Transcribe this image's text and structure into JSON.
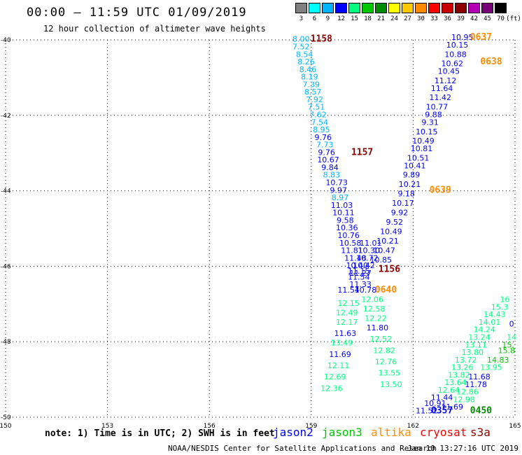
{
  "header": {
    "title": "00:00 – 11:59 UTC 01/09/2019",
    "subtitle": "12 hour collection of altimeter wave heights"
  },
  "color_scale": {
    "unit": "(ft)",
    "bins": [
      {
        "label": "3",
        "color": "#808080"
      },
      {
        "label": "6",
        "color": "#00ffff"
      },
      {
        "label": "9",
        "color": "#00b4ff"
      },
      {
        "label": "12",
        "color": "#0000ff"
      },
      {
        "label": "15",
        "color": "#00ff7f"
      },
      {
        "label": "18",
        "color": "#00c800"
      },
      {
        "label": "21",
        "color": "#008c00"
      },
      {
        "label": "24",
        "color": "#ffff00"
      },
      {
        "label": "27",
        "color": "#ffc800"
      },
      {
        "label": "30",
        "color": "#ff8c00"
      },
      {
        "label": "33",
        "color": "#ff0000"
      },
      {
        "label": "36",
        "color": "#c80000"
      },
      {
        "label": "39",
        "color": "#8c0000"
      },
      {
        "label": "42",
        "color": "#b400b4"
      },
      {
        "label": "45",
        "color": "#780078"
      },
      {
        "label": "70",
        "color": "#000000"
      }
    ]
  },
  "map": {
    "lon_range": [
      150,
      165
    ],
    "lat_range": [
      -50,
      -40
    ],
    "lon_ticks": [
      "150",
      "153",
      "156",
      "159",
      "162",
      "165"
    ],
    "lat_ticks": [
      "-40",
      "-42",
      "-44",
      "-46",
      "-48",
      "-50"
    ],
    "grid": "dotted"
  },
  "tracks": [
    {
      "id": "track-1158",
      "time_label": "1158",
      "time_lon": 159.3,
      "time_lat": -40.05,
      "time_color": "#8c0000",
      "points": [
        {
          "lon": 158.7,
          "lat": -40.05,
          "v": "8.00",
          "c": "#00b4ff"
        },
        {
          "lon": 158.7,
          "lat": -40.25,
          "v": "7.52",
          "c": "#00b4ff"
        },
        {
          "lon": 158.8,
          "lat": -40.45,
          "v": "8.54",
          "c": "#00b4ff"
        },
        {
          "lon": 158.85,
          "lat": -40.65,
          "v": "8.26",
          "c": "#00b4ff"
        },
        {
          "lon": 158.9,
          "lat": -40.85,
          "v": "8.46",
          "c": "#00b4ff"
        },
        {
          "lon": 158.95,
          "lat": -41.05,
          "v": "8.19",
          "c": "#00b4ff"
        },
        {
          "lon": 159.0,
          "lat": -41.25,
          "v": "7.39",
          "c": "#00b4ff"
        },
        {
          "lon": 159.05,
          "lat": -41.45,
          "v": "8.57",
          "c": "#00b4ff"
        },
        {
          "lon": 159.1,
          "lat": -41.65,
          "v": "7.92",
          "c": "#00b4ff"
        },
        {
          "lon": 159.15,
          "lat": -41.85,
          "v": "7.51",
          "c": "#00b4ff"
        },
        {
          "lon": 159.2,
          "lat": -42.05,
          "v": "7.62",
          "c": "#00b4ff"
        },
        {
          "lon": 159.25,
          "lat": -42.25,
          "v": "7.54",
          "c": "#00b4ff"
        },
        {
          "lon": 159.3,
          "lat": -42.45,
          "v": "8.95",
          "c": "#00b4ff"
        },
        {
          "lon": 159.35,
          "lat": -42.65,
          "v": "9.76",
          "c": "#0000ff"
        },
        {
          "lon": 159.4,
          "lat": -42.85,
          "v": "7.73",
          "c": "#00b4ff"
        },
        {
          "lon": 159.45,
          "lat": -43.05,
          "v": "9.76",
          "c": "#0000ff"
        },
        {
          "lon": 159.5,
          "lat": -43.25,
          "v": "10.67",
          "c": "#0000ff"
        },
        {
          "lon": 159.55,
          "lat": -43.45,
          "v": "9.84",
          "c": "#0000ff"
        },
        {
          "lon": 159.6,
          "lat": -43.65,
          "v": "8.83",
          "c": "#00b4ff"
        }
      ]
    },
    {
      "id": "track-1157",
      "time_label": "1157",
      "time_lon": 160.5,
      "time_lat": -43.05,
      "time_color": "#8c0000",
      "points": [
        {
          "lon": 159.75,
          "lat": -43.85,
          "v": "10.73",
          "c": "#0000ff"
        },
        {
          "lon": 159.8,
          "lat": -44.05,
          "v": "9.97",
          "c": "#0000ff"
        },
        {
          "lon": 159.85,
          "lat": -44.25,
          "v": "8.97",
          "c": "#00b4ff"
        },
        {
          "lon": 159.9,
          "lat": -44.45,
          "v": "11.03",
          "c": "#0000ff"
        },
        {
          "lon": 159.95,
          "lat": -44.65,
          "v": "10.11",
          "c": "#0000ff"
        },
        {
          "lon": 160.0,
          "lat": -44.85,
          "v": "9.58",
          "c": "#0000ff"
        },
        {
          "lon": 160.05,
          "lat": -45.05,
          "v": "10.36",
          "c": "#0000ff"
        },
        {
          "lon": 160.1,
          "lat": -45.25,
          "v": "10.76",
          "c": "#0000ff"
        },
        {
          "lon": 160.15,
          "lat": -45.45,
          "v": "10.58",
          "c": "#0000ff"
        },
        {
          "lon": 160.2,
          "lat": -45.65,
          "v": "11.81",
          "c": "#0000ff"
        },
        {
          "lon": 160.3,
          "lat": -45.85,
          "v": "11.48",
          "c": "#0000ff"
        },
        {
          "lon": 160.35,
          "lat": -46.05,
          "v": "10.40",
          "c": "#0000ff"
        },
        {
          "lon": 160.4,
          "lat": -46.2,
          "v": "11.15",
          "c": "#0000ff"
        },
        {
          "lon": 160.4,
          "lat": -46.35,
          "v": "11.54",
          "c": "#0000ff"
        },
        {
          "lon": 160.45,
          "lat": -46.55,
          "v": "11.33",
          "c": "#0000ff"
        },
        {
          "lon": 160.1,
          "lat": -46.7,
          "v": "11.54",
          "c": "#0000ff"
        }
      ]
    },
    {
      "id": "track-1156",
      "time_label": "1156",
      "time_lon": 161.3,
      "time_lat": -46.15,
      "time_color": "#8c0000",
      "points": [
        {
          "lon": 160.75,
          "lat": -45.45,
          "v": "11.01",
          "c": "#0000ff"
        },
        {
          "lon": 160.7,
          "lat": -45.65,
          "v": "10.30",
          "c": "#0000ff"
        },
        {
          "lon": 160.65,
          "lat": -45.85,
          "v": "10.72",
          "c": "#0000ff"
        },
        {
          "lon": 160.55,
          "lat": -46.05,
          "v": "10.42",
          "c": "#0000ff"
        },
        {
          "lon": 160.45,
          "lat": -46.25,
          "v": "11.27",
          "c": "#0000ff"
        },
        {
          "lon": 160.6,
          "lat": -46.7,
          "v": "10.78",
          "c": "#0000ff"
        }
      ]
    },
    {
      "id": "track-0640",
      "time_label": "0640",
      "time_lon": 161.2,
      "time_lat": -46.7,
      "time_color": "#ff8c00",
      "points": [
        {
          "lon": 160.1,
          "lat": -47.05,
          "v": "12.15",
          "c": "#00ff7f"
        },
        {
          "lon": 160.05,
          "lat": -47.3,
          "v": "12.49",
          "c": "#00ff7f"
        },
        {
          "lon": 160.05,
          "lat": -47.55,
          "v": "12.17",
          "c": "#00ff7f"
        },
        {
          "lon": 160.0,
          "lat": -47.85,
          "v": "11.63",
          "c": "#0000ff"
        },
        {
          "lon": 159.9,
          "lat": -48.1,
          "v": "13.49",
          "c": "#00ff7f"
        },
        {
          "lon": 159.85,
          "lat": -48.4,
          "v": "11.69",
          "c": "#0000ff"
        },
        {
          "lon": 159.8,
          "lat": -48.7,
          "v": "12.11",
          "c": "#00ff7f"
        },
        {
          "lon": 159.7,
          "lat": -49.0,
          "v": "12.69",
          "c": "#00ff7f"
        },
        {
          "lon": 159.6,
          "lat": -49.3,
          "v": "12.36",
          "c": "#00ff7f"
        },
        {
          "lon": 160.8,
          "lat": -46.95,
          "v": "12.06",
          "c": "#00ff7f"
        },
        {
          "lon": 160.85,
          "lat": -47.2,
          "v": "12.58",
          "c": "#00ff7f"
        },
        {
          "lon": 160.9,
          "lat": -47.45,
          "v": "12.22",
          "c": "#00ff7f"
        },
        {
          "lon": 160.95,
          "lat": -47.7,
          "v": "11.80",
          "c": "#0000ff"
        },
        {
          "lon": 161.05,
          "lat": -48.0,
          "v": "12.52",
          "c": "#00ff7f"
        },
        {
          "lon": 161.15,
          "lat": -48.3,
          "v": "12.82",
          "c": "#00ff7f"
        },
        {
          "lon": 161.2,
          "lat": -48.6,
          "v": "12.76",
          "c": "#00ff7f"
        },
        {
          "lon": 161.3,
          "lat": -48.9,
          "v": "13.55",
          "c": "#00ff7f"
        },
        {
          "lon": 161.35,
          "lat": -49.2,
          "v": "13.50",
          "c": "#00ff7f"
        }
      ]
    },
    {
      "id": "track-0637",
      "time_label": "0637",
      "time_lon": 164.0,
      "time_lat": -40.0,
      "time_color": "#ff8c00",
      "points": [
        {
          "lon": 163.45,
          "lat": -40.0,
          "v": "10.95",
          "c": "#0000ff"
        },
        {
          "lon": 163.3,
          "lat": -40.2,
          "v": "10.15",
          "c": "#0000ff"
        },
        {
          "lon": 163.25,
          "lat": -40.45,
          "v": "10.88",
          "c": "#0000ff"
        },
        {
          "lon": 163.15,
          "lat": -40.7,
          "v": "10.62",
          "c": "#0000ff"
        },
        {
          "lon": 163.05,
          "lat": -40.9,
          "v": "10.45",
          "c": "#0000ff"
        },
        {
          "lon": 162.95,
          "lat": -41.15,
          "v": "11.12",
          "c": "#0000ff"
        },
        {
          "lon": 162.85,
          "lat": -41.35,
          "v": "11.64",
          "c": "#0000ff"
        },
        {
          "lon": 162.8,
          "lat": -41.6,
          "v": "11.42",
          "c": "#0000ff"
        },
        {
          "lon": 162.7,
          "lat": -41.85,
          "v": "10.77",
          "c": "#0000ff"
        },
        {
          "lon": 162.6,
          "lat": -42.05,
          "v": "9.88",
          "c": "#0000ff"
        },
        {
          "lon": 162.5,
          "lat": -42.25,
          "v": "9.31",
          "c": "#0000ff"
        },
        {
          "lon": 162.4,
          "lat": -42.5,
          "v": "10.15",
          "c": "#0000ff"
        },
        {
          "lon": 162.3,
          "lat": -42.75,
          "v": "10.49",
          "c": "#0000ff"
        },
        {
          "lon": 162.25,
          "lat": -42.95,
          "v": "10.81",
          "c": "#0000ff"
        },
        {
          "lon": 162.15,
          "lat": -43.2,
          "v": "10.51",
          "c": "#0000ff"
        },
        {
          "lon": 162.05,
          "lat": -43.4,
          "v": "10.41",
          "c": "#0000ff"
        },
        {
          "lon": 161.95,
          "lat": -43.65,
          "v": "9.89",
          "c": "#0000ff"
        }
      ]
    },
    {
      "id": "track-0638",
      "time_label": "0638",
      "time_lon": 164.3,
      "time_lat": -40.65,
      "time_color": "#ff8c00",
      "points": []
    },
    {
      "id": "track-0639",
      "time_label": "0639",
      "time_lon": 162.8,
      "time_lat": -44.05,
      "time_color": "#ff8c00",
      "points": [
        {
          "lon": 161.9,
          "lat": -43.9,
          "v": "10.21",
          "c": "#0000ff"
        },
        {
          "lon": 161.8,
          "lat": -44.15,
          "v": "9.18",
          "c": "#0000ff"
        },
        {
          "lon": 161.7,
          "lat": -44.4,
          "v": "10.17",
          "c": "#0000ff"
        },
        {
          "lon": 161.6,
          "lat": -44.65,
          "v": "9.92",
          "c": "#0000ff"
        },
        {
          "lon": 161.45,
          "lat": -44.9,
          "v": "9.52",
          "c": "#0000ff"
        },
        {
          "lon": 161.35,
          "lat": -45.15,
          "v": "10.49",
          "c": "#0000ff"
        },
        {
          "lon": 161.25,
          "lat": -45.4,
          "v": "10.21",
          "c": "#0000ff"
        },
        {
          "lon": 161.15,
          "lat": -45.65,
          "v": "10.47",
          "c": "#0000ff"
        },
        {
          "lon": 161.05,
          "lat": -45.9,
          "v": "10.85",
          "c": "#0000ff"
        }
      ]
    },
    {
      "id": "track-0357",
      "time_label": "0357",
      "time_lon": 162.85,
      "time_lat": -49.9,
      "time_color": "#0000ff",
      "points": [
        {
          "lon": 162.4,
          "lat": -49.9,
          "v": "11.52",
          "c": "#0000ff"
        },
        {
          "lon": 162.65,
          "lat": -49.7,
          "v": "10.91",
          "c": "#0000ff"
        },
        {
          "lon": 162.85,
          "lat": -49.55,
          "v": "11.44",
          "c": "#0000ff"
        },
        {
          "lon": 163.05,
          "lat": -49.35,
          "v": "12.64",
          "c": "#00ff7f"
        },
        {
          "lon": 163.25,
          "lat": -49.15,
          "v": "13.64",
          "c": "#00ff7f"
        },
        {
          "lon": 163.35,
          "lat": -48.95,
          "v": "13.82",
          "c": "#00ff7f"
        },
        {
          "lon": 163.45,
          "lat": -48.75,
          "v": "13.26",
          "c": "#00ff7f"
        },
        {
          "lon": 163.55,
          "lat": -48.55,
          "v": "13.72",
          "c": "#00ff7f"
        },
        {
          "lon": 163.75,
          "lat": -48.35,
          "v": "13.80",
          "c": "#00ff7f"
        },
        {
          "lon": 163.85,
          "lat": -48.15,
          "v": "13.11",
          "c": "#00ff7f"
        },
        {
          "lon": 163.95,
          "lat": -47.95,
          "v": "13.24",
          "c": "#00ff7f"
        },
        {
          "lon": 164.1,
          "lat": -47.75,
          "v": "14.24",
          "c": "#00ff7f"
        },
        {
          "lon": 164.25,
          "lat": -47.55,
          "v": "14.01",
          "c": "#00ff7f"
        },
        {
          "lon": 164.4,
          "lat": -47.35,
          "v": "14.43",
          "c": "#00ff7f"
        },
        {
          "lon": 164.55,
          "lat": -47.15,
          "v": "15.3",
          "c": "#00ff7f"
        },
        {
          "lon": 164.7,
          "lat": -46.95,
          "v": "16",
          "c": "#00ff7f"
        },
        {
          "lon": 163.15,
          "lat": -49.8,
          "v": "11.69",
          "c": "#0000ff"
        },
        {
          "lon": 163.5,
          "lat": -49.6,
          "v": "12.98",
          "c": "#00ff7f"
        },
        {
          "lon": 163.6,
          "lat": -49.4,
          "v": "12.86",
          "c": "#00ff7f"
        },
        {
          "lon": 163.85,
          "lat": -49.2,
          "v": "11.78",
          "c": "#0000ff"
        },
        {
          "lon": 163.95,
          "lat": -49.0,
          "v": "11.68",
          "c": "#0000ff"
        },
        {
          "lon": 164.3,
          "lat": -48.75,
          "v": "13.95",
          "c": "#00ff7f"
        },
        {
          "lon": 164.5,
          "lat": -48.55,
          "v": "14.83",
          "c": "#00c800"
        },
        {
          "lon": 164.75,
          "lat": -48.3,
          "v": "15.8",
          "c": "#00c800"
        },
        {
          "lon": 164.8,
          "lat": -48.15,
          "v": "15.",
          "c": "#00c800"
        },
        {
          "lon": 164.9,
          "lat": -47.95,
          "v": "14",
          "c": "#00ff7f"
        },
        {
          "lon": 164.9,
          "lat": -47.6,
          "v": "0",
          "c": "#0000ff"
        }
      ]
    },
    {
      "id": "track-0450",
      "time_label": "0450",
      "time_lon": 164.0,
      "time_lat": -49.9,
      "time_color": "#008c00",
      "points": []
    }
  ],
  "footer": {
    "note": "note: 1) Time is in UTC; 2) SWH is in feet",
    "satellites": [
      {
        "name": "jason2",
        "color": "#0000ff"
      },
      {
        "name": "jason3",
        "color": "#00c800"
      },
      {
        "name": "altika",
        "color": "#ff8c00"
      },
      {
        "name": "cryosat",
        "color": "#ff0000"
      },
      {
        "name": "s3a",
        "color": "#8c0000"
      }
    ],
    "credit": "NOAA/NESDIS Center for Satellite Applications and Research",
    "timestamp": "Jan 10 13:27:16 UTC 2019"
  }
}
